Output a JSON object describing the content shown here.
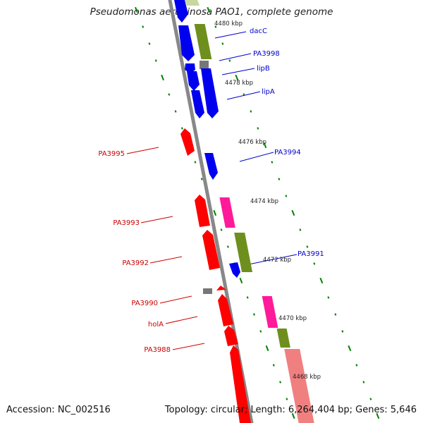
{
  "title": "Pseudomonas aeruginosa PAO1, complete genome",
  "footer": {
    "accession": "Accession: NC_002516",
    "summary": "Topology: circular; Length: 6,264,404 bp; Genes: 5,646"
  },
  "scale": {
    "unit": "kbp",
    "ticks": [
      "4480 kbp",
      "4478 kbp",
      "4476 kbp",
      "4474 kbp",
      "4472 kbp",
      "4470 kbp",
      "4468 kbp"
    ]
  },
  "genes": {
    "forward": [
      "dacC",
      "PA3998",
      "lipB",
      "lipA",
      "PA3994",
      "PA3991"
    ],
    "reverse": [
      "PA3995",
      "PA3993",
      "PA3992",
      "PA3990",
      "holA",
      "PA3988"
    ]
  },
  "colors": {
    "forward_label": "#0000cc",
    "reverse_label": "#cc0000",
    "blue_feature": "#0000ee",
    "red_feature": "#ff0000",
    "pink_feature": "#ff1a9a",
    "olive_feature": "#6e8f1e",
    "grey_feature": "#777777",
    "salmon_feature": "#f08080",
    "backbone": "#888888",
    "tick_marks": "#008000"
  }
}
